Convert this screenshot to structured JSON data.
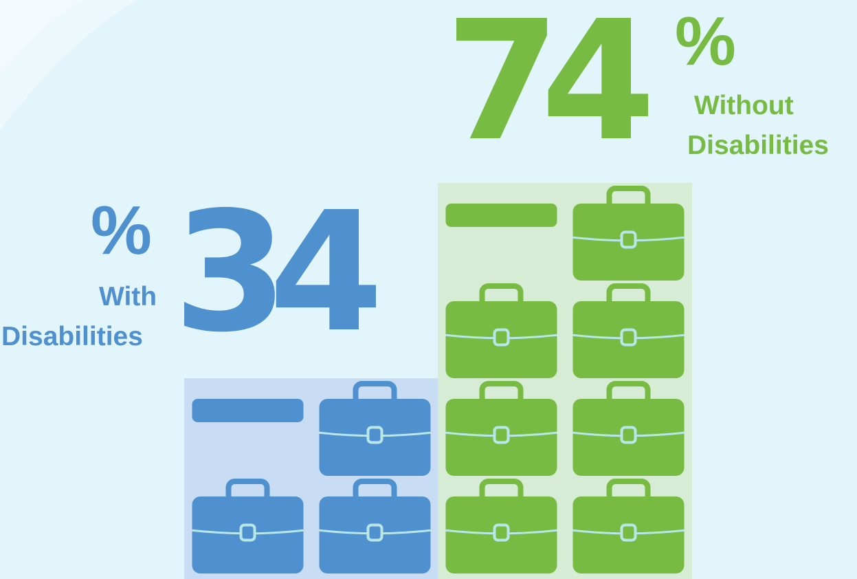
{
  "chart_data": {
    "type": "bar",
    "categories": [
      "With Disabilities",
      "Without Disabilities"
    ],
    "values": [
      34,
      74
    ],
    "unit": "%",
    "max_units": 8,
    "unit_value": 10,
    "series": [
      {
        "name": "With Disabilities",
        "value": 34,
        "percent_symbol": "%",
        "line1": "With",
        "line2": "Disabilities",
        "color": "#4f90cf",
        "panel_color": "#c8ddf3"
      },
      {
        "name": "Without Disabilities",
        "value": 74,
        "percent_symbol": "%",
        "line1": "Without",
        "line2": "Disabilities",
        "color": "#77bb43",
        "panel_color": "#d6ecd4"
      }
    ]
  },
  "colors": {
    "background": "#e2f5fb",
    "handle_accent": "#b9e6e8"
  },
  "icon": "briefcase-icon"
}
